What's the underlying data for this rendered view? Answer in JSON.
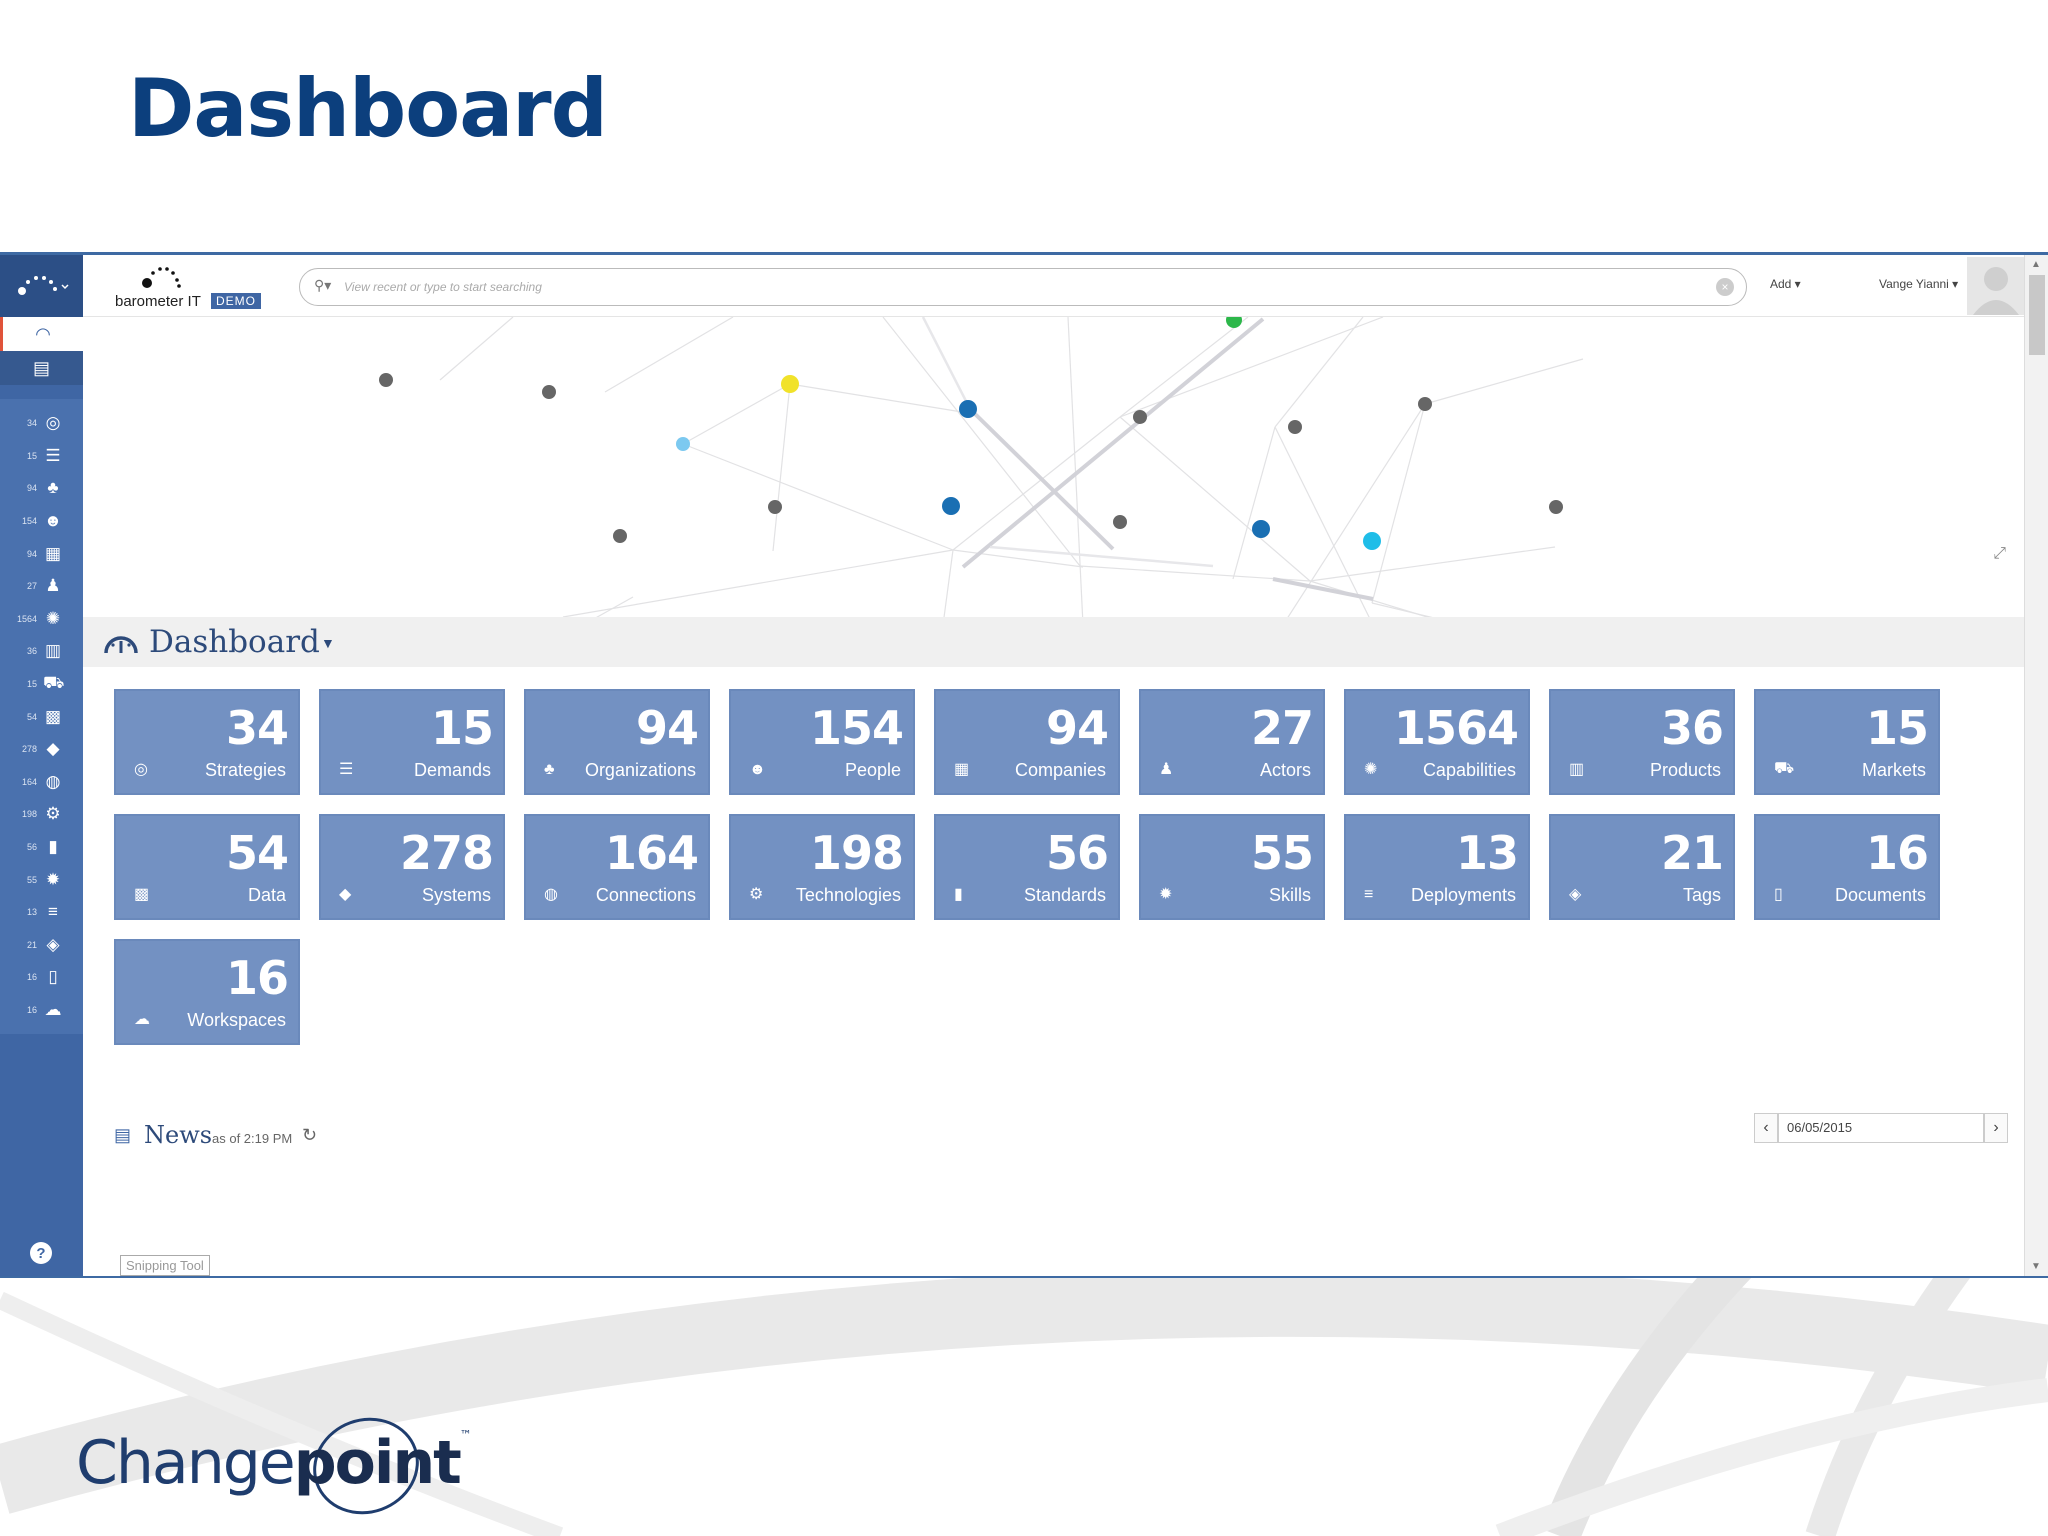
{
  "slide": {
    "title": "Dashboard"
  },
  "brand": {
    "name": "barometer IT",
    "badge": "DEMO"
  },
  "search": {
    "placeholder": "View recent or type to start searching"
  },
  "header": {
    "add_label": "Add ▾",
    "user_label": "Vange Yianni ▾"
  },
  "sidebar": {
    "items": [
      {
        "count": "34",
        "icon": "compass-icon",
        "glyph": "◎"
      },
      {
        "count": "15",
        "icon": "sliders-icon",
        "glyph": "☰"
      },
      {
        "count": "94",
        "icon": "sitemap-icon",
        "glyph": "♣"
      },
      {
        "count": "154",
        "icon": "users-icon",
        "glyph": "☻"
      },
      {
        "count": "94",
        "icon": "building-icon",
        "glyph": "▦"
      },
      {
        "count": "27",
        "icon": "person-icon",
        "glyph": "♟"
      },
      {
        "count": "1564",
        "icon": "lightbulb-icon",
        "glyph": "✺"
      },
      {
        "count": "36",
        "icon": "barcode-icon",
        "glyph": "▥"
      },
      {
        "count": "15",
        "icon": "cart-icon",
        "glyph": "⛟"
      },
      {
        "count": "54",
        "icon": "qrcode-icon",
        "glyph": "▩"
      },
      {
        "count": "278",
        "icon": "cube-icon",
        "glyph": "◆"
      },
      {
        "count": "164",
        "icon": "globe-icon",
        "glyph": "◍"
      },
      {
        "count": "198",
        "icon": "gears-icon",
        "glyph": "⚙"
      },
      {
        "count": "56",
        "icon": "bookmark-icon",
        "glyph": "▮"
      },
      {
        "count": "55",
        "icon": "badge-icon",
        "glyph": "✹"
      },
      {
        "count": "13",
        "icon": "database-icon",
        "glyph": "≡"
      },
      {
        "count": "21",
        "icon": "tags-icon",
        "glyph": "◈"
      },
      {
        "count": "16",
        "icon": "file-icon",
        "glyph": "▯"
      },
      {
        "count": "16",
        "icon": "cloud-icon",
        "glyph": "☁"
      }
    ]
  },
  "dashboard": {
    "title": "Dashboard",
    "tiles": [
      {
        "count": "34",
        "label": "Strategies",
        "icon": "compass-icon",
        "glyph": "◎"
      },
      {
        "count": "15",
        "label": "Demands",
        "icon": "sliders-icon",
        "glyph": "☰"
      },
      {
        "count": "94",
        "label": "Organizations",
        "icon": "sitemap-icon",
        "glyph": "♣"
      },
      {
        "count": "154",
        "label": "People",
        "icon": "users-icon",
        "glyph": "☻"
      },
      {
        "count": "94",
        "label": "Companies",
        "icon": "building-icon",
        "glyph": "▦"
      },
      {
        "count": "27",
        "label": "Actors",
        "icon": "person-icon",
        "glyph": "♟"
      },
      {
        "count": "1564",
        "label": "Capabilities",
        "icon": "lightbulb-icon",
        "glyph": "✺"
      },
      {
        "count": "36",
        "label": "Products",
        "icon": "barcode-icon",
        "glyph": "▥"
      },
      {
        "count": "15",
        "label": "Markets",
        "icon": "cart-icon",
        "glyph": "⛟"
      },
      {
        "count": "54",
        "label": "Data",
        "icon": "qrcode-icon",
        "glyph": "▩"
      },
      {
        "count": "278",
        "label": "Systems",
        "icon": "cube-icon",
        "glyph": "◆"
      },
      {
        "count": "164",
        "label": "Connections",
        "icon": "globe-icon",
        "glyph": "◍"
      },
      {
        "count": "198",
        "label": "Technologies",
        "icon": "gears-icon",
        "glyph": "⚙"
      },
      {
        "count": "56",
        "label": "Standards",
        "icon": "bookmark-icon",
        "glyph": "▮"
      },
      {
        "count": "55",
        "label": "Skills",
        "icon": "badge-icon",
        "glyph": "✹"
      },
      {
        "count": "13",
        "label": "Deployments",
        "icon": "database-icon",
        "glyph": "≡"
      },
      {
        "count": "21",
        "label": "Tags",
        "icon": "tags-icon",
        "glyph": "◈"
      },
      {
        "count": "16",
        "label": "Documents",
        "icon": "file-icon",
        "glyph": "▯"
      },
      {
        "count": "16",
        "label": "Workspaces",
        "icon": "cloud-icon",
        "glyph": "☁"
      }
    ]
  },
  "news": {
    "title": "News",
    "as_of": "as of 2:19 PM"
  },
  "date_picker": {
    "value": "06/05/2015"
  },
  "overlay": {
    "snipping_tool": "Snipping Tool"
  },
  "footer": {
    "logo_text_light": "Change",
    "logo_text_bold": "point",
    "logo_tm": "™"
  },
  "colors": {
    "title": "#0c3f7d",
    "sidebar": "#3f66a4",
    "tile": "#7391c2",
    "node_yellow": "#f1e22a",
    "node_green": "#2cb74a",
    "node_blue": "#1a6fb3",
    "node_cyan": "#1fbde8",
    "node_lightblue": "#7cc9f0",
    "node_gray": "#666666"
  }
}
